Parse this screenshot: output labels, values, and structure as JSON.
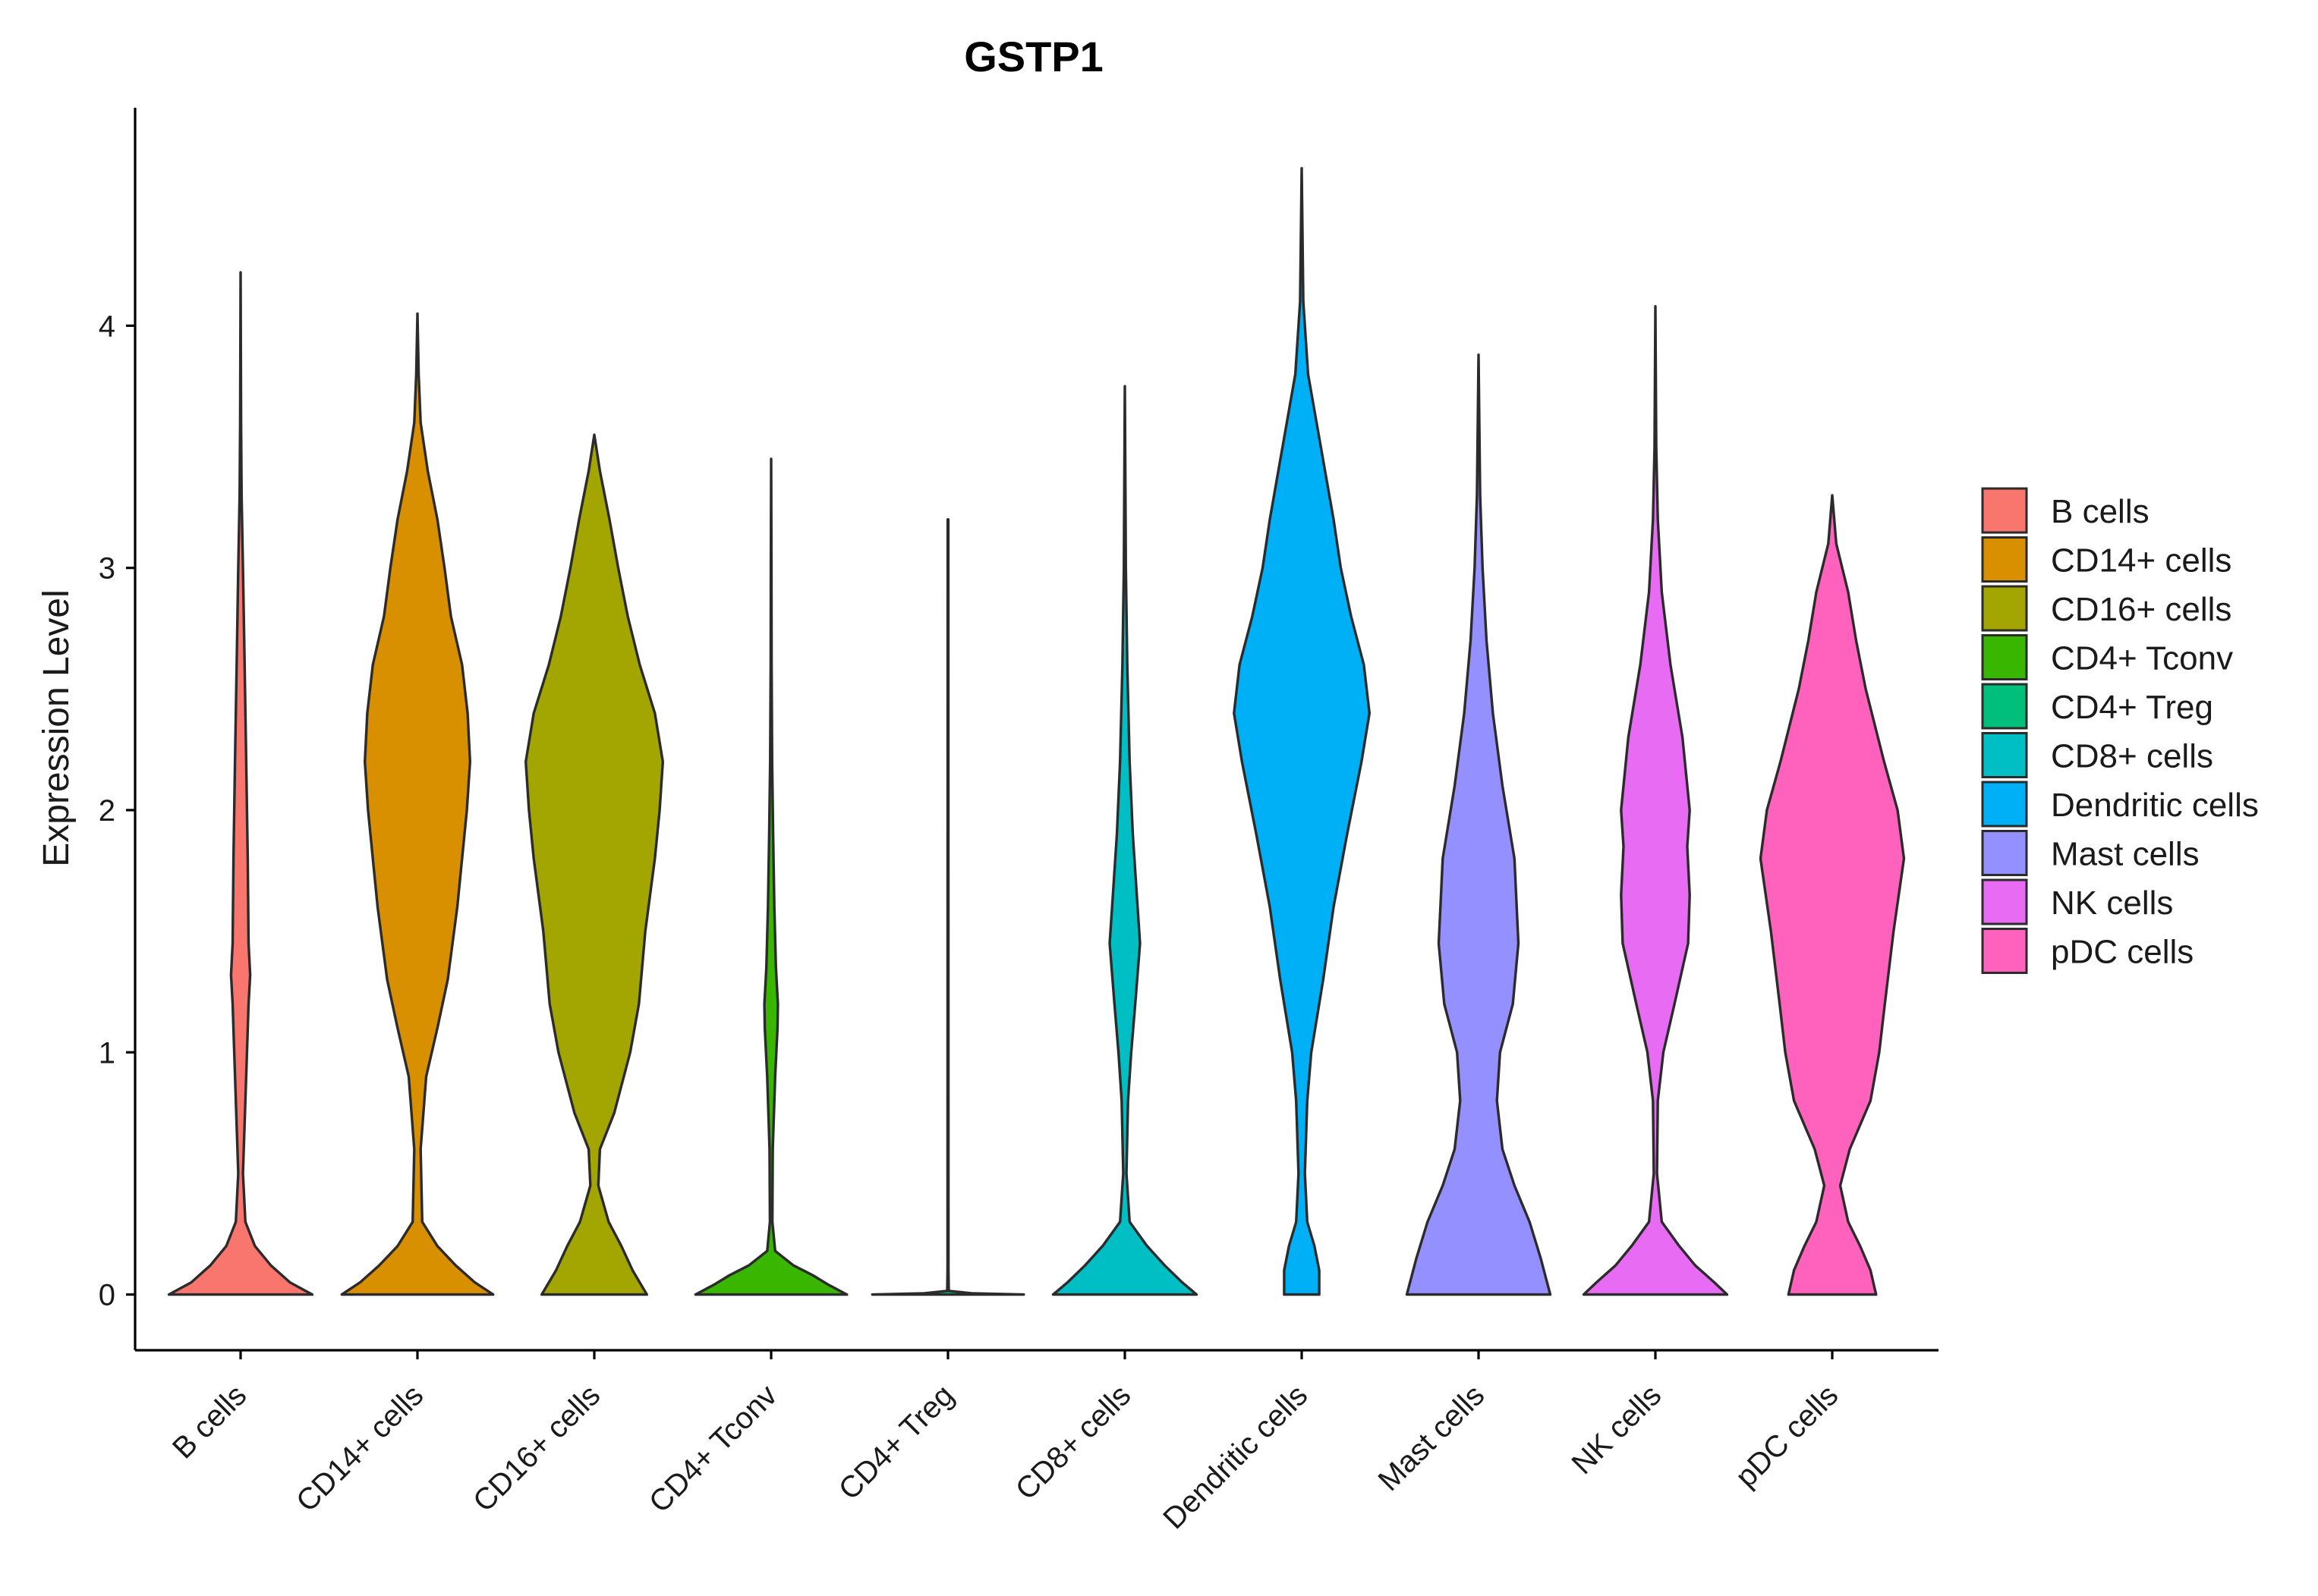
{
  "chart_data": {
    "type": "violin",
    "title": "GSTP1",
    "xlabel": "",
    "ylabel": "Expression Level",
    "ylim": [
      -0.23,
      4.9
    ],
    "yticks": [
      0,
      1,
      2,
      3,
      4
    ],
    "categories": [
      "B cells",
      "CD14+ cells",
      "CD16+ cells",
      "CD4+ Tconv",
      "CD4+ Treg",
      "CD8+ cells",
      "Dendritic cells",
      "Mast cells",
      "NK cells",
      "pDC cells"
    ],
    "colors": [
      "#F8766D",
      "#D89000",
      "#A3A500",
      "#39B600",
      "#00BF7D",
      "#00BFC4",
      "#00B0F6",
      "#9590FF",
      "#E76BF3",
      "#FF62BC"
    ],
    "legend": {
      "position": "right",
      "entries": [
        "B cells",
        "CD14+ cells",
        "CD16+ cells",
        "CD4+ Tconv",
        "CD4+ Treg",
        "CD8+ cells",
        "Dendritic cells",
        "Mast cells",
        "NK cells",
        "pDC cells"
      ]
    },
    "series": [
      {
        "name": "B cells",
        "max": 4.22,
        "profile": [
          [
            0,
            0.9
          ],
          [
            0.05,
            0.62
          ],
          [
            0.12,
            0.38
          ],
          [
            0.2,
            0.18
          ],
          [
            0.3,
            0.06
          ],
          [
            0.5,
            0.03
          ],
          [
            0.8,
            0.06
          ],
          [
            1.0,
            0.08
          ],
          [
            1.2,
            0.1
          ],
          [
            1.32,
            0.12
          ],
          [
            1.45,
            0.1
          ],
          [
            1.8,
            0.09
          ],
          [
            2.2,
            0.07
          ],
          [
            2.6,
            0.05
          ],
          [
            3.0,
            0.03
          ],
          [
            3.3,
            0.012
          ],
          [
            3.6,
            0.006
          ],
          [
            4.22,
            0
          ]
        ]
      },
      {
        "name": "CD14+ cells",
        "max": 4.05,
        "profile": [
          [
            0,
            0.95
          ],
          [
            0.05,
            0.72
          ],
          [
            0.12,
            0.48
          ],
          [
            0.2,
            0.25
          ],
          [
            0.3,
            0.06
          ],
          [
            0.6,
            0.04
          ],
          [
            0.9,
            0.11
          ],
          [
            1.1,
            0.25
          ],
          [
            1.3,
            0.38
          ],
          [
            1.6,
            0.5
          ],
          [
            2.0,
            0.62
          ],
          [
            2.2,
            0.66
          ],
          [
            2.4,
            0.63
          ],
          [
            2.6,
            0.56
          ],
          [
            2.8,
            0.42
          ],
          [
            3.0,
            0.34
          ],
          [
            3.2,
            0.25
          ],
          [
            3.4,
            0.13
          ],
          [
            3.6,
            0.04
          ],
          [
            3.8,
            0.015
          ],
          [
            4.05,
            0
          ]
        ]
      },
      {
        "name": "CD16+ cells",
        "max": 3.55,
        "profile": [
          [
            0,
            0.66
          ],
          [
            0.1,
            0.48
          ],
          [
            0.2,
            0.34
          ],
          [
            0.3,
            0.18
          ],
          [
            0.45,
            0.05
          ],
          [
            0.6,
            0.07
          ],
          [
            0.75,
            0.25
          ],
          [
            1.0,
            0.45
          ],
          [
            1.2,
            0.56
          ],
          [
            1.5,
            0.64
          ],
          [
            1.8,
            0.76
          ],
          [
            2.0,
            0.82
          ],
          [
            2.2,
            0.86
          ],
          [
            2.4,
            0.76
          ],
          [
            2.6,
            0.57
          ],
          [
            2.8,
            0.42
          ],
          [
            3.0,
            0.3
          ],
          [
            3.2,
            0.19
          ],
          [
            3.4,
            0.07
          ],
          [
            3.55,
            0
          ]
        ]
      },
      {
        "name": "CD4+ Tconv",
        "max": 3.45,
        "profile": [
          [
            0,
            0.95
          ],
          [
            0.04,
            0.72
          ],
          [
            0.08,
            0.52
          ],
          [
            0.12,
            0.28
          ],
          [
            0.18,
            0.05
          ],
          [
            0.3,
            0.015
          ],
          [
            0.6,
            0.02
          ],
          [
            0.9,
            0.05
          ],
          [
            1.1,
            0.08
          ],
          [
            1.2,
            0.085
          ],
          [
            1.35,
            0.06
          ],
          [
            1.6,
            0.04
          ],
          [
            1.9,
            0.025
          ],
          [
            2.2,
            0.012
          ],
          [
            2.6,
            0.006
          ],
          [
            3.0,
            0.004
          ],
          [
            3.45,
            0
          ]
        ]
      },
      {
        "name": "CD4+ Treg",
        "max": 3.2,
        "profile": [
          [
            0,
            0.95
          ],
          [
            0.005,
            0.3
          ],
          [
            0.015,
            0.01
          ],
          [
            0.1,
            0.006
          ],
          [
            3.2,
            0.004
          ]
        ]
      },
      {
        "name": "CD8+ cells",
        "max": 3.75,
        "profile": [
          [
            0,
            0.9
          ],
          [
            0.05,
            0.72
          ],
          [
            0.12,
            0.5
          ],
          [
            0.2,
            0.28
          ],
          [
            0.3,
            0.06
          ],
          [
            0.5,
            0.02
          ],
          [
            0.8,
            0.04
          ],
          [
            1.0,
            0.08
          ],
          [
            1.2,
            0.13
          ],
          [
            1.45,
            0.19
          ],
          [
            1.6,
            0.16
          ],
          [
            1.9,
            0.1
          ],
          [
            2.2,
            0.06
          ],
          [
            2.6,
            0.03
          ],
          [
            3.0,
            0.012
          ],
          [
            3.75,
            0
          ]
        ]
      },
      {
        "name": "Dendritic cells",
        "max": 4.65,
        "profile": [
          [
            0,
            0.22
          ],
          [
            0.1,
            0.22
          ],
          [
            0.2,
            0.16
          ],
          [
            0.3,
            0.07
          ],
          [
            0.5,
            0.04
          ],
          [
            0.8,
            0.07
          ],
          [
            1.0,
            0.12
          ],
          [
            1.3,
            0.27
          ],
          [
            1.6,
            0.4
          ],
          [
            1.9,
            0.57
          ],
          [
            2.2,
            0.75
          ],
          [
            2.4,
            0.85
          ],
          [
            2.6,
            0.78
          ],
          [
            2.8,
            0.62
          ],
          [
            3.0,
            0.49
          ],
          [
            3.2,
            0.4
          ],
          [
            3.5,
            0.24
          ],
          [
            3.8,
            0.08
          ],
          [
            4.1,
            0.02
          ],
          [
            4.65,
            0
          ]
        ]
      },
      {
        "name": "Mast cells",
        "max": 3.88,
        "profile": [
          [
            0,
            0.9
          ],
          [
            0.15,
            0.78
          ],
          [
            0.3,
            0.64
          ],
          [
            0.45,
            0.45
          ],
          [
            0.6,
            0.3
          ],
          [
            0.8,
            0.23
          ],
          [
            1.0,
            0.27
          ],
          [
            1.2,
            0.43
          ],
          [
            1.45,
            0.5
          ],
          [
            1.8,
            0.45
          ],
          [
            2.1,
            0.3
          ],
          [
            2.4,
            0.18
          ],
          [
            2.7,
            0.1
          ],
          [
            3.0,
            0.05
          ],
          [
            3.3,
            0.02
          ],
          [
            3.6,
            0.01
          ],
          [
            3.88,
            0
          ]
        ]
      },
      {
        "name": "NK cells",
        "max": 4.08,
        "profile": [
          [
            0,
            0.9
          ],
          [
            0.05,
            0.74
          ],
          [
            0.12,
            0.5
          ],
          [
            0.2,
            0.3
          ],
          [
            0.3,
            0.08
          ],
          [
            0.5,
            0.02
          ],
          [
            0.8,
            0.03
          ],
          [
            1.0,
            0.1
          ],
          [
            1.2,
            0.24
          ],
          [
            1.45,
            0.41
          ],
          [
            1.65,
            0.43
          ],
          [
            1.85,
            0.4
          ],
          [
            2.0,
            0.43
          ],
          [
            2.3,
            0.34
          ],
          [
            2.6,
            0.19
          ],
          [
            2.9,
            0.08
          ],
          [
            3.2,
            0.03
          ],
          [
            3.5,
            0.01
          ],
          [
            4.08,
            0
          ]
        ]
      },
      {
        "name": "pDC cells",
        "max": 3.3,
        "profile": [
          [
            0,
            0.55
          ],
          [
            0.1,
            0.48
          ],
          [
            0.2,
            0.35
          ],
          [
            0.3,
            0.2
          ],
          [
            0.45,
            0.1
          ],
          [
            0.6,
            0.22
          ],
          [
            0.8,
            0.48
          ],
          [
            1.0,
            0.59
          ],
          [
            1.2,
            0.66
          ],
          [
            1.5,
            0.77
          ],
          [
            1.8,
            0.9
          ],
          [
            2.0,
            0.82
          ],
          [
            2.2,
            0.65
          ],
          [
            2.5,
            0.42
          ],
          [
            2.7,
            0.3
          ],
          [
            2.9,
            0.2
          ],
          [
            3.1,
            0.05
          ],
          [
            3.3,
            0
          ]
        ]
      }
    ]
  }
}
